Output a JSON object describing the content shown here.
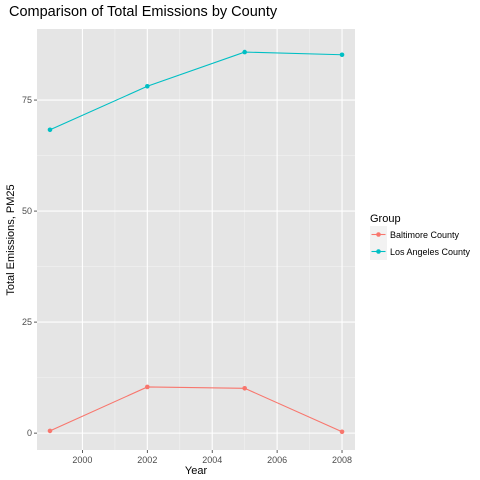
{
  "chart_data": {
    "type": "line",
    "title": "Comparison of Total Emissions by County",
    "xlabel": "Year",
    "ylabel": "Total Emissions, PM25",
    "x": [
      1999,
      2002,
      2005,
      2008
    ],
    "xlim": [
      1998.6,
      2008.4
    ],
    "ylim": [
      -3.8,
      91
    ],
    "x_ticks": [
      2000,
      2002,
      2004,
      2006,
      2008
    ],
    "x_tick_labels": [
      "2000",
      "2002",
      "2004",
      "2006",
      "2008"
    ],
    "y_ticks": [
      0,
      25,
      50,
      75
    ],
    "y_tick_labels": [
      "0",
      "25",
      "50",
      "75"
    ],
    "grid": true,
    "legend": {
      "title": "Group",
      "position": "right"
    },
    "series": [
      {
        "name": "Baltimore County",
        "color": "#F8766D",
        "values": [
          0.5,
          10.4,
          10.1,
          0.3
        ]
      },
      {
        "name": "Los Angeles County",
        "color": "#00BFC4",
        "values": [
          68.3,
          78.1,
          85.8,
          85.2
        ]
      }
    ]
  }
}
